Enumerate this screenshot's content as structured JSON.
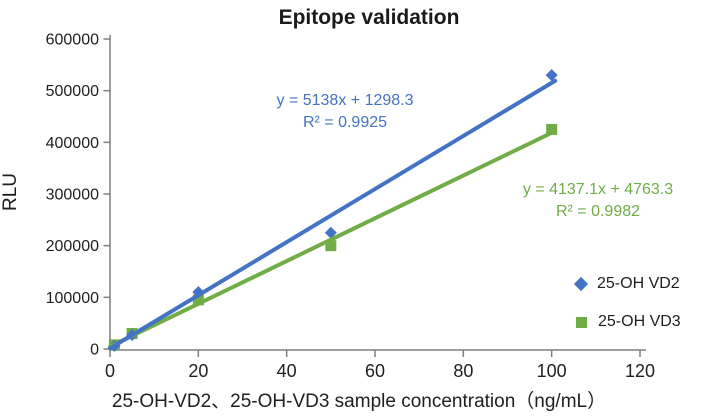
{
  "chart_data": {
    "type": "scatter",
    "title": "Epitope validation",
    "xlabel": "25-OH-VD2、25-OH-VD3 sample concentration（ng/mL）",
    "ylabel": "RLU",
    "xlim": [
      0,
      120
    ],
    "ylim": [
      0,
      600000
    ],
    "x_ticks": [
      0,
      20,
      40,
      60,
      80,
      100,
      120
    ],
    "x_tick_labels": [
      "0",
      "20",
      "40",
      "60",
      "80",
      "100",
      "120"
    ],
    "y_ticks": [
      0,
      100000,
      200000,
      300000,
      400000,
      500000,
      600000
    ],
    "y_tick_labels": [
      "0",
      "100000",
      "200000",
      "300000",
      "400000",
      "500000",
      "600000"
    ],
    "grid": false,
    "legend_position": "right",
    "axis_color": "#7f7f7f",
    "text_color": "#1f1f1f",
    "series": [
      {
        "name": "25-OH VD2",
        "marker": "diamond",
        "color": "#4472C4",
        "points": [
          [
            1,
            6000
          ],
          [
            5,
            27000
          ],
          [
            20,
            110000
          ],
          [
            50,
            225000
          ],
          [
            100,
            530000
          ]
        ],
        "trendline": {
          "slope": 5138,
          "intercept": 1298.3,
          "x_start": 0,
          "x_end": 100.8
        },
        "equation": "y = 5138x + 1298.3",
        "r2": "R² = 0.9925"
      },
      {
        "name": "25-OH VD3",
        "marker": "square",
        "color": "#70AD47",
        "points": [
          [
            1,
            8000
          ],
          [
            5,
            30000
          ],
          [
            20,
            95000
          ],
          [
            50,
            200000
          ],
          [
            100,
            425000
          ]
        ],
        "trendline": {
          "slope": 4137.1,
          "intercept": 4763.3,
          "x_start": 0,
          "x_end": 100.8
        },
        "equation": "y = 4137.1x + 4763.3",
        "r2": "R² = 0.9982"
      }
    ]
  }
}
